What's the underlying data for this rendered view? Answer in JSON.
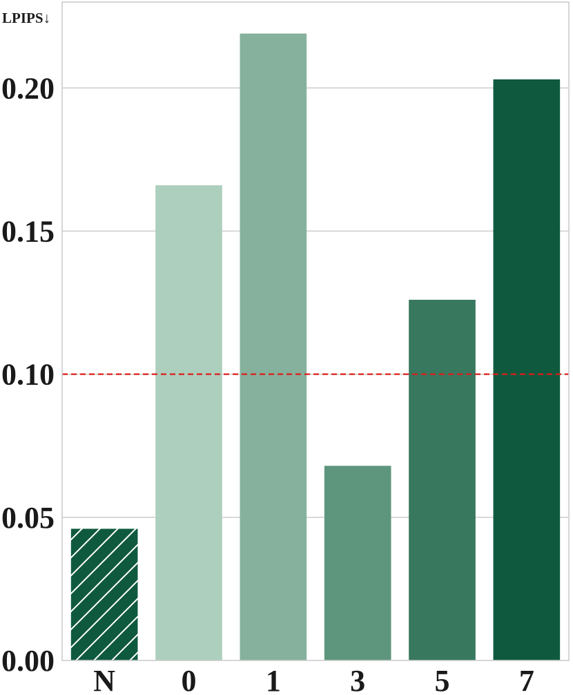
{
  "chart_data": {
    "type": "bar",
    "ylabel": "LPIPS↓",
    "xlabel": "",
    "categories": [
      "N",
      "0",
      "1",
      "3",
      "5",
      "7"
    ],
    "values": [
      0.046,
      0.166,
      0.219,
      0.068,
      0.126,
      0.203
    ],
    "bar_colors": [
      "#0f5a3f",
      "#adcfbd",
      "#86b19c",
      "#5e967d",
      "#37785e",
      "#0f5a3f"
    ],
    "hatched": [
      true,
      false,
      false,
      false,
      false,
      false
    ],
    "ylim": [
      0,
      0.23
    ],
    "yticks": [
      0.0,
      0.05,
      0.1,
      0.15,
      0.2
    ],
    "ytick_labels": [
      "0.00",
      "0.05",
      "0.10",
      "0.15",
      "0.20"
    ],
    "reference_line": {
      "value": 0.1,
      "color": "#dd1c1c",
      "style": "dashed"
    },
    "grid": "y",
    "legend": "none"
  }
}
